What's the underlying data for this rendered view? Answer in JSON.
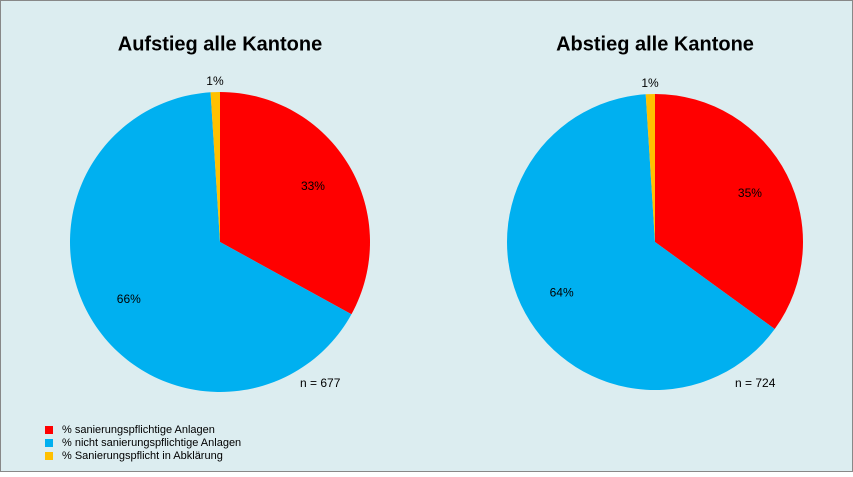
{
  "chart_data": [
    {
      "type": "pie",
      "title": "Aufstieg alle Kantone",
      "values": [
        33,
        66,
        1
      ],
      "value_labels": [
        "33%",
        "66%",
        "1%"
      ],
      "annotation": "n = 677"
    },
    {
      "type": "pie",
      "title": "Abstieg alle Kantone",
      "values": [
        35,
        64,
        1
      ],
      "value_labels": [
        "35%",
        "64%",
        "1%"
      ],
      "annotation": "n = 724"
    }
  ],
  "legend": {
    "labels": [
      "% sanierungspflichtige Anlagen",
      "% nicht sanierungspflichtige Anlagen",
      "% Sanierungspflicht in Abklärung"
    ],
    "colors": [
      "#ff0000",
      "#00b0f0",
      "#ffc000"
    ]
  }
}
